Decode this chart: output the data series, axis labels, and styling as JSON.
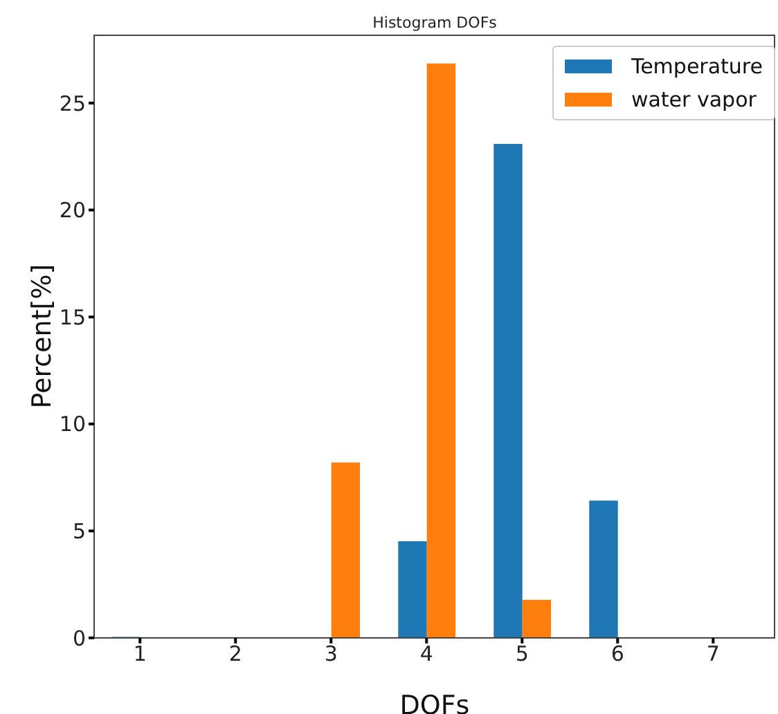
{
  "chart_data": {
    "type": "bar",
    "title": "Histogram DOFs",
    "xlabel": "DOFs",
    "ylabel": "Percent[%]",
    "x": [
      1,
      2,
      3,
      4,
      5,
      6,
      7
    ],
    "series": [
      {
        "name": "Temperature",
        "color": "#1f77b4",
        "values": [
          0.05,
          0,
          0,
          4.52,
          23.09,
          6.42,
          0
        ]
      },
      {
        "name": "water vapor",
        "color": "#ff7f0e",
        "values": [
          0,
          0,
          8.2,
          26.85,
          1.78,
          0,
          0
        ]
      }
    ],
    "xlim": [
      0.52,
      7.65
    ],
    "xticks": [
      1,
      2,
      3,
      4,
      5,
      6,
      7
    ],
    "ylim": [
      0,
      28.2
    ],
    "yticks": [
      0,
      5,
      10,
      15,
      20,
      25
    ],
    "grid": false,
    "legend": "top right"
  }
}
